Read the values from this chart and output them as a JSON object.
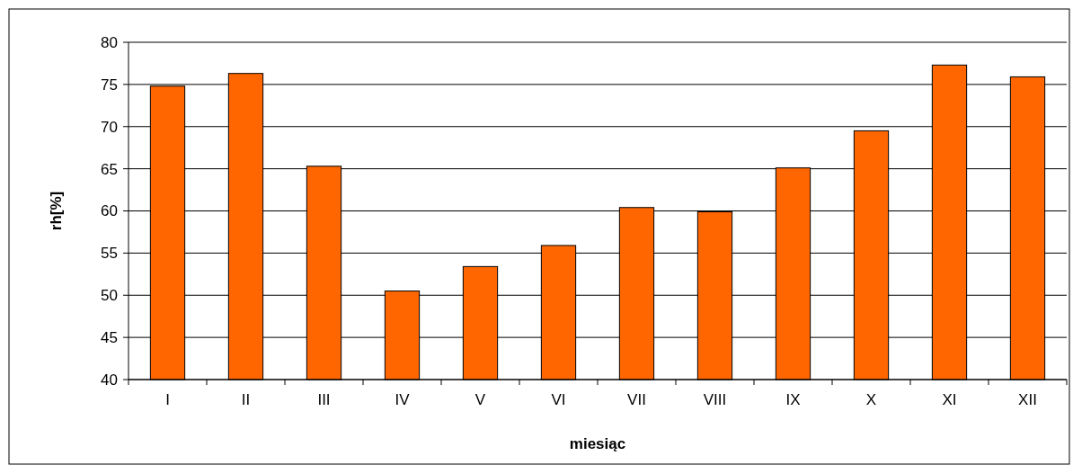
{
  "chart_data": {
    "type": "bar",
    "xlabel": "miesiąc",
    "ylabel": "rh[%]",
    "categories": [
      "I",
      "II",
      "III",
      "IV",
      "V",
      "VI",
      "VII",
      "VIII",
      "IX",
      "X",
      "XI",
      "XII"
    ],
    "values": [
      74.8,
      76.3,
      65.3,
      50.5,
      53.4,
      55.9,
      60.4,
      59.9,
      65.1,
      69.5,
      77.3,
      75.9
    ],
    "color": "#ff6600",
    "ylim": [
      40,
      80
    ],
    "yticks": [
      40,
      45,
      50,
      55,
      60,
      65,
      70,
      75,
      80
    ],
    "grid": "y"
  }
}
